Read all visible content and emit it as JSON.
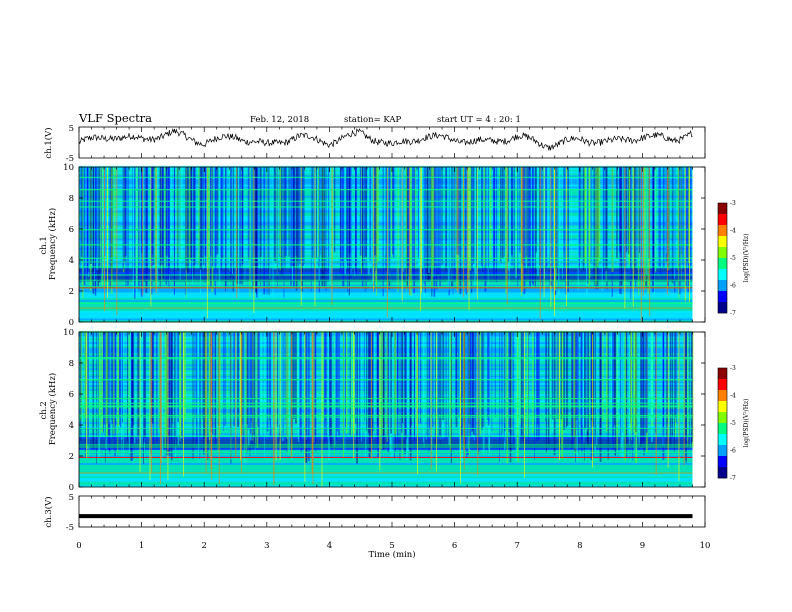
{
  "header": {
    "title": "VLF Spectra",
    "date": "Feb. 12, 2018",
    "station": "station= KAP",
    "start": "start UT =  4 : 20: 1"
  },
  "colorbar_colors": [
    "#00008b",
    "#0000ff",
    "#00a0ff",
    "#00ffff",
    "#00ff80",
    "#80ff00",
    "#ffff00",
    "#ff8000",
    "#ff0000"
  ],
  "chart_data": [
    {
      "type": "line",
      "id": "ch1-waveform",
      "ylabel": "ch.1(V)",
      "ylim": [
        -5,
        5
      ],
      "yticks": [
        "5",
        "-5"
      ],
      "xlim": [
        0,
        10
      ],
      "series": [
        {
          "values_description_free": true,
          "x": [
            0,
            0.5,
            1,
            1.5,
            2,
            2.5,
            3,
            3.5,
            4,
            4.5,
            5,
            5.5,
            6,
            6.5,
            7,
            7.5,
            8,
            8.5,
            9,
            9.5,
            9.8
          ],
          "y": [
            0,
            2,
            1,
            3,
            0,
            2,
            -1,
            2,
            0,
            3,
            -1,
            2,
            1,
            0,
            2,
            -1,
            1,
            0,
            2,
            1,
            3
          ]
        }
      ]
    },
    {
      "type": "heatmap",
      "id": "ch1-spectrogram",
      "ylabel": "ch.1 Frequency (kHz)",
      "ylim": [
        0,
        10
      ],
      "yticks": [
        "10",
        "8",
        "6",
        "4",
        "2",
        "0"
      ],
      "xlim": [
        0,
        9.8
      ],
      "colorbar": {
        "label": "log(PSD)(V²/Hz)",
        "range": [
          -7,
          -3
        ],
        "ticks": [
          "-3",
          "-4",
          "-5",
          "-6",
          "-7"
        ]
      }
    },
    {
      "type": "heatmap",
      "id": "ch2-spectrogram",
      "ylabel": "ch.2 Frequency (kHz)",
      "ylim": [
        0,
        10
      ],
      "yticks": [
        "10",
        "8",
        "6",
        "4",
        "2",
        "0"
      ],
      "xlim": [
        0,
        9.8
      ],
      "colorbar": {
        "label": "log(PSD)(V²/Hz)",
        "range": [
          -7,
          -3
        ],
        "ticks": [
          "-3",
          "-4",
          "-5",
          "-6",
          "-7"
        ]
      }
    },
    {
      "type": "line",
      "id": "ch3-waveform",
      "ylabel": "ch.3(V)",
      "ylim": [
        -5,
        5
      ],
      "yticks": [
        "5",
        "-5"
      ],
      "xlim": [
        0,
        10
      ],
      "series": [
        {
          "x": [
            0,
            9.8
          ],
          "y": [
            -1.5,
            -1.5
          ]
        }
      ]
    }
  ],
  "xaxis": {
    "label": "Time (min)",
    "ticks": [
      "0",
      "1",
      "2",
      "3",
      "4",
      "5",
      "6",
      "7",
      "8",
      "9",
      "10"
    ],
    "range": [
      0,
      10
    ]
  }
}
